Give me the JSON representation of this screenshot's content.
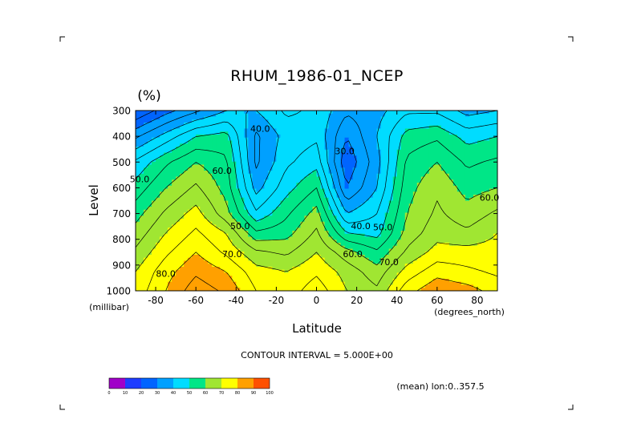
{
  "chart_data": {
    "type": "heatmap",
    "title": "RHUM_1986-01_NCEP",
    "unit_label": "(%)",
    "xlabel": "Latitude",
    "x_unit": "(degrees_north)",
    "ylabel": "Level",
    "y_unit": "(millibar)",
    "xlim": [
      -90,
      90
    ],
    "ylim": [
      1000,
      300
    ],
    "x_ticks": [
      -80,
      -60,
      -40,
      -20,
      0,
      20,
      40,
      60,
      80
    ],
    "x_tick_labels": [
      "-80",
      "-60",
      "-40",
      "-20",
      "0",
      "20",
      "40",
      "60",
      "80"
    ],
    "y_ticks": [
      300,
      400,
      500,
      600,
      700,
      800,
      900,
      1000
    ],
    "y_tick_labels": [
      "300",
      "400",
      "500",
      "600",
      "700",
      "800",
      "900",
      "1000"
    ],
    "contour_interval_text": "CONTOUR INTERVAL = 5.000E+00",
    "mean_text": "(mean) lon:0..357.5",
    "contour_labels": [
      {
        "text": "40.0",
        "x": -28,
        "y": 383
      },
      {
        "text": "30.0",
        "x": 14,
        "y": 470
      },
      {
        "text": "60.0",
        "x": -47,
        "y": 545
      },
      {
        "text": "50.0",
        "x": -88,
        "y": 578
      },
      {
        "text": "50.0",
        "x": -38,
        "y": 760
      },
      {
        "text": "40.0",
        "x": 22,
        "y": 760
      },
      {
        "text": "50.0",
        "x": 33,
        "y": 765
      },
      {
        "text": "70.0",
        "x": -42,
        "y": 870
      },
      {
        "text": "60.0",
        "x": 18,
        "y": 870
      },
      {
        "text": "70.0",
        "x": 36,
        "y": 900
      },
      {
        "text": "80.0",
        "x": -75,
        "y": 945
      },
      {
        "text": "60.0",
        "x": 86,
        "y": 650
      }
    ],
    "colorbar": {
      "levels": [
        "0",
        "10",
        "20",
        "30",
        "40",
        "50",
        "60",
        "70",
        "80",
        "90",
        "100"
      ],
      "colors": [
        "#a000c8",
        "#1e3cff",
        "#0064ff",
        "#00a0ff",
        "#00dcff",
        "#00e687",
        "#a0e632",
        "#ffff00",
        "#ffa000",
        "#ff5000",
        "#ff0000"
      ]
    },
    "lat_grid": [
      -90,
      -75,
      -60,
      -45,
      -30,
      -15,
      0,
      15,
      30,
      45,
      60,
      75,
      90
    ],
    "lev_grid": [
      1000,
      925,
      850,
      775,
      700,
      600,
      500,
      400,
      300
    ],
    "values": [
      [
        72,
        80,
        88,
        84,
        75,
        72,
        78,
        70,
        66,
        78,
        84,
        82,
        78
      ],
      [
        70,
        78,
        84,
        80,
        72,
        70,
        74,
        68,
        62,
        72,
        78,
        76,
        74
      ],
      [
        66,
        74,
        80,
        74,
        66,
        64,
        70,
        62,
        56,
        66,
        72,
        72,
        72
      ],
      [
        62,
        70,
        76,
        70,
        56,
        58,
        66,
        50,
        48,
        62,
        68,
        66,
        70
      ],
      [
        58,
        66,
        72,
        62,
        46,
        54,
        62,
        40,
        45,
        60,
        66,
        62,
        66
      ],
      [
        52,
        60,
        66,
        58,
        38,
        48,
        55,
        30,
        40,
        58,
        64,
        58,
        60
      ],
      [
        46,
        54,
        60,
        56,
        34,
        44,
        48,
        26,
        38,
        56,
        60,
        54,
        56
      ],
      [
        34,
        42,
        50,
        52,
        34,
        42,
        44,
        30,
        40,
        52,
        54,
        48,
        50
      ],
      [
        20,
        28,
        34,
        40,
        40,
        46,
        44,
        36,
        38,
        44,
        44,
        38,
        40
      ]
    ]
  }
}
